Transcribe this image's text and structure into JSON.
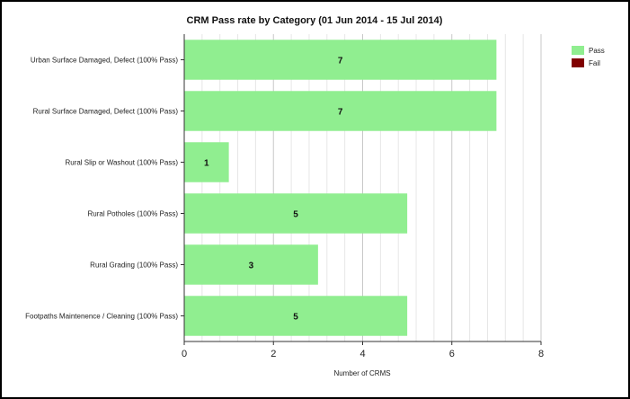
{
  "chart_data": {
    "type": "bar",
    "orientation": "horizontal",
    "title": "CRM Pass rate by Category (01 Jun 2014 - 15 Jul 2014)",
    "xlabel": "Number of CRMS",
    "ylabel": "",
    "xlim": [
      0,
      8
    ],
    "xticks": [
      "0",
      "2",
      "4",
      "6",
      "8"
    ],
    "grid": "vertical",
    "legend_position": "top-right",
    "categories": [
      "Urban Surface Damaged, Defect (100% Pass)",
      "Rural Surface Damaged, Defect (100% Pass)",
      "Rural Slip or Washout (100% Pass)",
      "Rural Potholes (100% Pass)",
      "Rural Grading (100% Pass)",
      "Footpaths Maintenence / Cleaning (100% Pass)"
    ],
    "series": [
      {
        "name": "Pass",
        "color": "#90ee90",
        "values": [
          7,
          7,
          1,
          5,
          3,
          5
        ]
      },
      {
        "name": "Fail",
        "color": "#800000",
        "values": [
          0,
          0,
          0,
          0,
          0,
          0
        ]
      }
    ]
  }
}
